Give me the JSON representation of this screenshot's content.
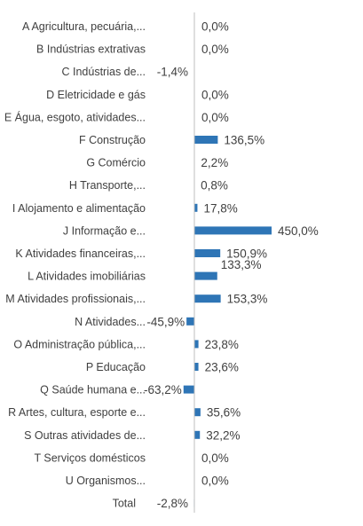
{
  "chart_data": {
    "type": "bar",
    "orientation": "horizontal",
    "categories": [
      "A Agricultura, pecuária,...",
      "B Indústrias extrativas",
      "C Indústrias de...",
      "D Eletricidade e gás",
      "E Água, esgoto, atividades...",
      "F Construção",
      "G Comércio",
      "H Transporte,...",
      "I Alojamento e alimentação",
      "J Informação e...",
      "K Atividades financeiras,...",
      "L Atividades imobiliárias",
      "M Atividades profissionais,...",
      "N Atividades...",
      "O Administração pública,...",
      "P Educação",
      "Q Saúde humana e...",
      "R Artes, cultura, esporte e...",
      "S Outras atividades de...",
      "T Serviços domésticos",
      "U Organismos...",
      "Total"
    ],
    "values": [
      0.0,
      0.0,
      -1.4,
      0.0,
      0.0,
      136.5,
      2.2,
      0.8,
      17.8,
      450.0,
      150.9,
      133.3,
      153.3,
      -45.9,
      23.8,
      23.6,
      -63.2,
      35.6,
      32.2,
      0.0,
      0.0,
      -2.8
    ],
    "value_labels": [
      "0,0%",
      "0,0%",
      "-1,4%",
      "0,0%",
      "0,0%",
      "136,5%",
      "2,2%",
      "0,8%",
      "17,8%",
      "450,0%",
      "150,9%",
      "133,3%",
      "153,3%",
      "-45,9%",
      "23,8%",
      "23,6%",
      "-63,2%",
      "35,6%",
      "32,2%",
      "0,0%",
      "0,0%",
      "-2,8%"
    ],
    "unit": "%",
    "bar_color": "#2e75b6",
    "axis_color": "#bfbfbf",
    "grid": false,
    "legend": false
  }
}
